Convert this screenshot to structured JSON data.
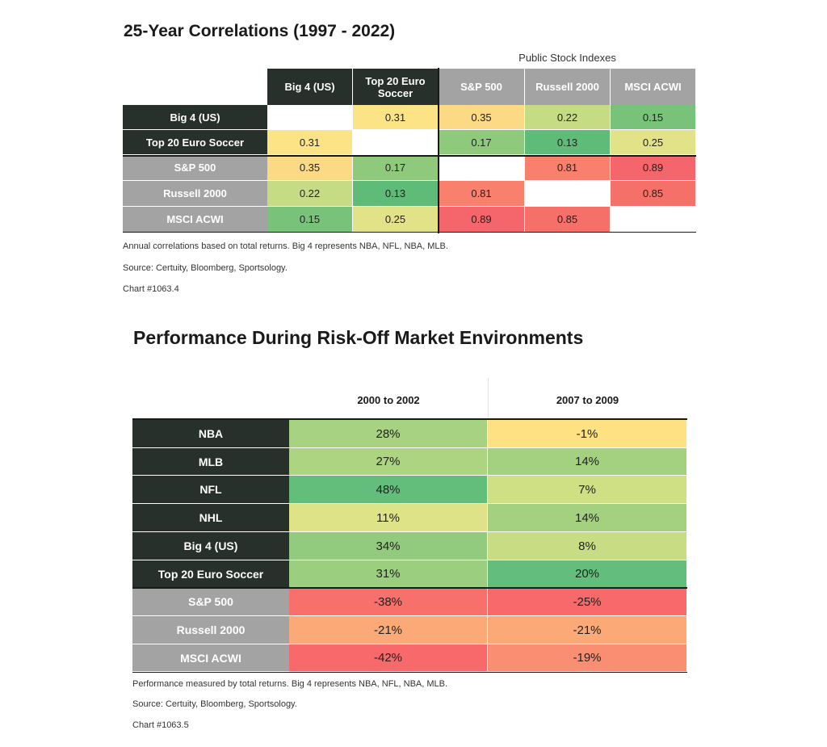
{
  "correlations": {
    "title": "25-Year Correlations (1997 - 2022)",
    "group_label": "Public Stock Indexes",
    "columns": [
      "Big 4 (US)",
      "Top 20 Euro Soccer",
      "S&P 500",
      "Russell 2000",
      "MSCI ACWI"
    ],
    "rows": [
      {
        "label": "Big 4 (US)",
        "cells": [
          "",
          "0.31",
          "0.35",
          "0.22",
          "0.15"
        ]
      },
      {
        "label": "Top 20 Euro Soccer",
        "cells": [
          "0.31",
          "",
          "0.17",
          "0.13",
          "0.25"
        ]
      },
      {
        "label": "S&P 500",
        "cells": [
          "0.35",
          "0.17",
          "",
          "0.81",
          "0.89"
        ]
      },
      {
        "label": "Russell 2000",
        "cells": [
          "0.22",
          "0.13",
          "0.81",
          "",
          "0.85"
        ]
      },
      {
        "label": "MSCI ACWI",
        "cells": [
          "0.15",
          "0.25",
          "0.89",
          "0.85",
          ""
        ]
      }
    ],
    "notes": [
      "Annual correlations based on total returns. Big 4 represents NBA, NFL, NBA, MLB.",
      "Source: Certuity, Bloomberg, Sportsology.",
      "Chart #1063.4"
    ]
  },
  "performance": {
    "title": "Performance During Risk-Off Market Environments",
    "columns": [
      "2000 to 2002",
      "2007 to 2009"
    ],
    "rows": [
      {
        "label": "NBA",
        "cells": [
          "28%",
          "-1%"
        ]
      },
      {
        "label": "MLB",
        "cells": [
          "27%",
          "14%"
        ]
      },
      {
        "label": "NFL",
        "cells": [
          "48%",
          "7%"
        ]
      },
      {
        "label": "NHL",
        "cells": [
          "11%",
          "14%"
        ]
      },
      {
        "label": "Big 4 (US)",
        "cells": [
          "34%",
          "8%"
        ]
      },
      {
        "label": "Top 20 Euro Soccer",
        "cells": [
          "31%",
          "20%"
        ]
      },
      {
        "label": "S&P 500",
        "cells": [
          "-38%",
          "-25%"
        ]
      },
      {
        "label": "Russell 2000",
        "cells": [
          "-21%",
          "-21%"
        ]
      },
      {
        "label": "MSCI ACWI",
        "cells": [
          "-42%",
          "-19%"
        ]
      }
    ],
    "notes": [
      "Performance measured by total returns. Big 4 represents NBA, NFL, NBA, MLB.",
      "Source: Certuity, Bloomberg, Sportsology.",
      "Chart #1063.5"
    ]
  },
  "chart_data": [
    {
      "type": "heatmap",
      "title": "25-Year Correlations (1997 - 2022)",
      "x": [
        "Big 4 (US)",
        "Top 20 Euro Soccer",
        "S&P 500",
        "Russell 2000",
        "MSCI ACWI"
      ],
      "y": [
        "Big 4 (US)",
        "Top 20 Euro Soccer",
        "S&P 500",
        "Russell 2000",
        "MSCI ACWI"
      ],
      "values": [
        [
          null,
          0.31,
          0.35,
          0.22,
          0.15
        ],
        [
          0.31,
          null,
          0.17,
          0.13,
          0.25
        ],
        [
          0.35,
          0.17,
          null,
          0.81,
          0.89
        ],
        [
          0.22,
          0.13,
          0.81,
          null,
          0.85
        ],
        [
          0.15,
          0.25,
          0.89,
          0.85,
          null
        ]
      ]
    },
    {
      "type": "table",
      "title": "Performance During Risk-Off Market Environments",
      "categories": [
        "NBA",
        "MLB",
        "NFL",
        "NHL",
        "Big 4 (US)",
        "Top 20 Euro Soccer",
        "S&P 500",
        "Russell 2000",
        "MSCI ACWI"
      ],
      "series": [
        {
          "name": "2000 to 2002",
          "values": [
            28,
            27,
            48,
            11,
            34,
            31,
            -38,
            -21,
            -42
          ]
        },
        {
          "name": "2007 to 2009",
          "values": [
            -1,
            14,
            7,
            14,
            8,
            20,
            -25,
            -21,
            -19
          ]
        }
      ]
    }
  ],
  "colors": {
    "dark_header": "#27302a",
    "gray_header": "#a3a3a3",
    "scale": {
      "0.13": "#5fbb78",
      "0.15": "#78c27a",
      "0.17": "#8fca7c",
      "0.22": "#c6dc84",
      "0.25": "#e2e289",
      "0.31": "#fbe386",
      "0.35": "#fcd985",
      "0.81": "#f8806c",
      "0.85": "#f6706a",
      "0.89": "#f4666b",
      "28%": "#a6d281",
      "27%": "#acd481",
      "48%": "#63be7b",
      "11%": "#dde386",
      "34%": "#92ca7e",
      "31%": "#9cce7f",
      "-38%": "#f8706c",
      "-21%": "#fbaa77",
      "-42%": "#f8696b",
      "-1%": "#fde183",
      "14%": "#a3d180",
      "7%": "#cfdf84",
      "8%": "#c8dc83",
      "20%": "#63be7b",
      "-25%": "#f8696b",
      "-19%": "#f98e73"
    }
  }
}
